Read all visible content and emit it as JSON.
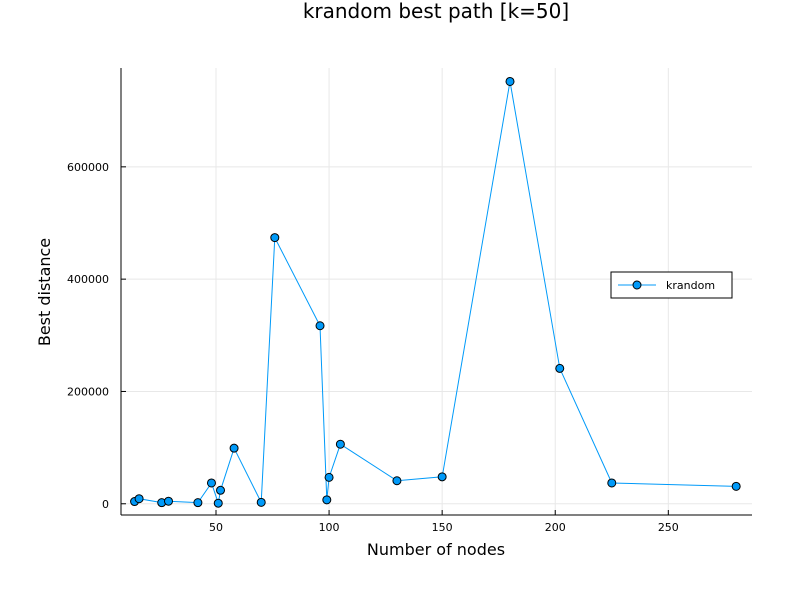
{
  "chart_data": {
    "type": "line",
    "title": "krandom best path [k=50]",
    "xlabel": "Number of nodes",
    "ylabel": "Best distance",
    "xlim": [
      8,
      287
    ],
    "ylim": [
      -20000,
      776000
    ],
    "xticks": [
      50,
      100,
      150,
      200,
      250
    ],
    "yticks": [
      0,
      200000,
      400000,
      600000
    ],
    "xtick_labels": [
      "50",
      "100",
      "150",
      "200",
      "250"
    ],
    "ytick_labels": [
      "0",
      "200000",
      "400000",
      "600000"
    ],
    "grid": true,
    "legend_position": "right",
    "series": [
      {
        "name": "krandom",
        "color": "#009af9",
        "marker": "circle",
        "points": [
          [
            14,
            4000
          ],
          [
            16,
            9000
          ],
          [
            26,
            2000
          ],
          [
            29,
            4500
          ],
          [
            42,
            2000
          ],
          [
            48,
            37000
          ],
          [
            51,
            1000
          ],
          [
            52,
            24000
          ],
          [
            58,
            99000
          ],
          [
            70,
            2500
          ],
          [
            76,
            474000
          ],
          [
            96,
            317000
          ],
          [
            99,
            7000
          ],
          [
            100,
            47000
          ],
          [
            105,
            106000
          ],
          [
            130,
            41000
          ],
          [
            150,
            48000
          ],
          [
            180,
            752000
          ],
          [
            202,
            241000
          ],
          [
            225,
            37000
          ],
          [
            280,
            31000
          ]
        ]
      }
    ]
  }
}
